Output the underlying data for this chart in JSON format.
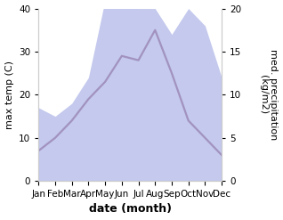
{
  "months": [
    "Jan",
    "Feb",
    "Mar",
    "Apr",
    "May",
    "Jun",
    "Jul",
    "Aug",
    "Sep",
    "Oct",
    "Nov",
    "Dec"
  ],
  "temp_max": [
    7,
    10,
    14,
    19,
    23,
    29,
    28,
    35,
    25,
    14,
    10,
    6
  ],
  "precipitation": [
    8.5,
    7.5,
    9,
    12,
    21,
    22,
    20,
    20,
    17,
    20,
    18,
    12
  ],
  "temp_color": "#7a2248",
  "precip_color": "#b0b8e8",
  "xlabel": "date (month)",
  "ylabel_left": "max temp (C)",
  "ylabel_right": "med. precipitation\n(kg/m2)",
  "ylim_left": [
    0,
    40
  ],
  "ylim_right": [
    0,
    20
  ],
  "yticks_left": [
    0,
    10,
    20,
    30,
    40
  ],
  "yticks_right": [
    0,
    5,
    10,
    15,
    20
  ],
  "bg_color": "#ffffff",
  "label_fontsize": 8,
  "tick_fontsize": 7.5,
  "xlabel_fontsize": 9
}
